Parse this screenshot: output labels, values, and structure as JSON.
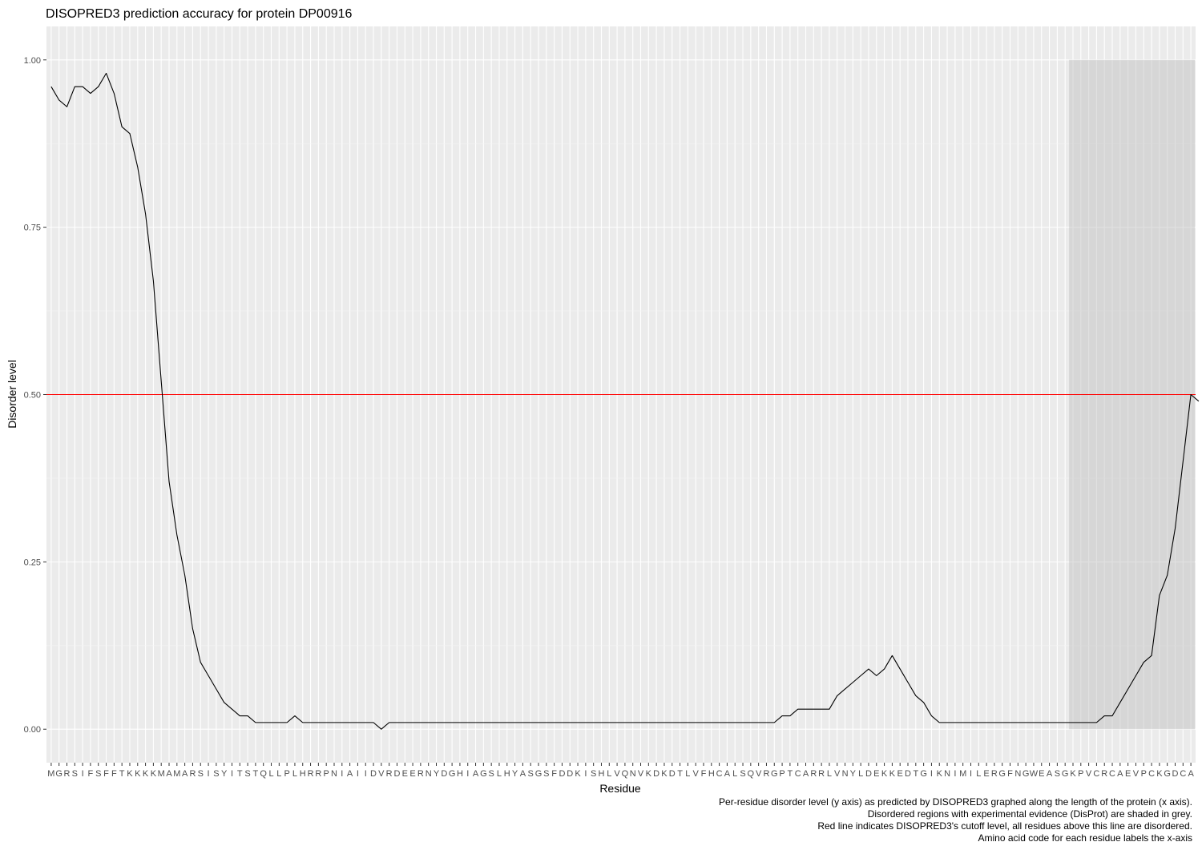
{
  "chart_data": {
    "type": "line",
    "title": "DISOPRED3 prediction accuracy for protein DP00916",
    "xlabel": "Residue",
    "ylabel": "Disorder level",
    "ylim": [
      -0.05,
      1.05
    ],
    "yticks": [
      0,
      0.25,
      0.5,
      0.75,
      1
    ],
    "ytick_labels": [
      "0.00",
      "0.25",
      "0.50",
      "0.75",
      "1.00"
    ],
    "sequence": "MGRSIFSFFTKKKKMAMARSISYITSTQLLPLHRRPNIAIIDVRDEERNYDGHIAGSLHYASGSFDDKISHLVQNVKDKDTLVFHCALSQVRGPTCARRLVNYLDEKKEDTGIKNIMILERGFNGWEASGKPVCRCAEVPCKGDCA",
    "cutoff": 0.5,
    "cutoff_color": "#ff0000",
    "line_color": "#000000",
    "panel_color": "#ebebeb",
    "shade_color": "#bdbdbd",
    "disordered_region": [
      131,
      146
    ],
    "series": [
      {
        "values": [
          0.96,
          0.94,
          0.93,
          0.96,
          0.96,
          0.95,
          0.96,
          0.98,
          0.95,
          0.9,
          0.89,
          0.84,
          0.77,
          0.67,
          0.52,
          0.37,
          0.29,
          0.23,
          0.15,
          0.1,
          0.08,
          0.06,
          0.04,
          0.03,
          0.02,
          0.02,
          0.01,
          0.01,
          0.01,
          0.01,
          0.01,
          0.02,
          0.01,
          0.01,
          0.01,
          0.01,
          0.01,
          0.01,
          0.01,
          0.01,
          0.01,
          0.01,
          0.0,
          0.01,
          0.01,
          0.01,
          0.01,
          0.01,
          0.01,
          0.01,
          0.01,
          0.01,
          0.01,
          0.01,
          0.01,
          0.01,
          0.01,
          0.01,
          0.01,
          0.01,
          0.01,
          0.01,
          0.01,
          0.01,
          0.01,
          0.01,
          0.01,
          0.01,
          0.01,
          0.01,
          0.01,
          0.01,
          0.01,
          0.01,
          0.01,
          0.01,
          0.01,
          0.01,
          0.01,
          0.01,
          0.01,
          0.01,
          0.01,
          0.01,
          0.01,
          0.01,
          0.01,
          0.01,
          0.01,
          0.01,
          0.01,
          0.01,
          0.01,
          0.02,
          0.02,
          0.03,
          0.03,
          0.03,
          0.03,
          0.03,
          0.05,
          0.06,
          0.07,
          0.08,
          0.09,
          0.08,
          0.09,
          0.11,
          0.09,
          0.07,
          0.05,
          0.04,
          0.02,
          0.01,
          0.01,
          0.01,
          0.01,
          0.01,
          0.01,
          0.01,
          0.01,
          0.01,
          0.01,
          0.01,
          0.01,
          0.01,
          0.01,
          0.01,
          0.01,
          0.01,
          0.01,
          0.01,
          0.01,
          0.01,
          0.02,
          0.02,
          0.04,
          0.06,
          0.08,
          0.1,
          0.11,
          0.2,
          0.23,
          0.3,
          0.4,
          0.5,
          0.49
        ]
      }
    ],
    "captions": [
      "Per-residue disorder level (y axis) as predicted by DISOPRED3 graphed along the length of the protein (x axis).",
      "Disordered regions with experimental evidence (DisProt) are shaded in grey.",
      "Red line indicates DISOPRED3's cutoff level, all residues above this line are disordered.",
      "Amino acid code for each residue labels the x-axis"
    ]
  }
}
